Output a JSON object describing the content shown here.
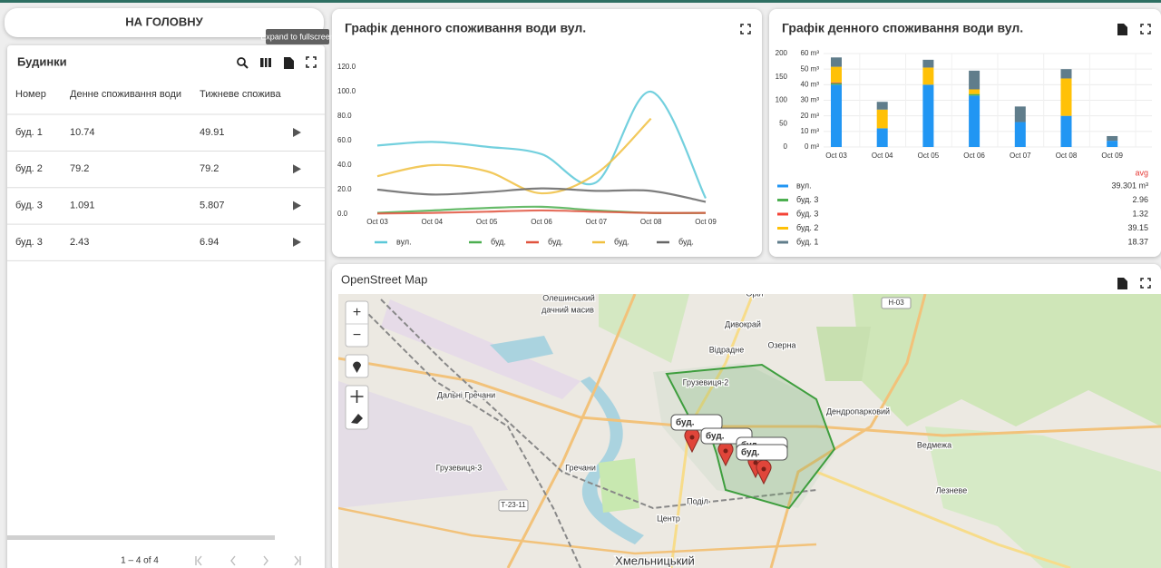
{
  "home_button": "НА ГОЛОВНУ",
  "tooltip": "Expand to fullscreen",
  "table": {
    "title": "Будинки",
    "columns": [
      "Номер",
      "Денне споживання води",
      "Тижневе спожива"
    ],
    "rows": [
      [
        "буд. 1",
        "10.74",
        "49.91"
      ],
      [
        "буд. 2",
        "79.2",
        "79.2"
      ],
      [
        "буд. 3",
        "1.091",
        "5.807"
      ],
      [
        "буд. 3",
        "2.43",
        "6.94"
      ]
    ],
    "pagination": "1 – 4 of 4"
  },
  "chart_data": [
    {
      "type": "line",
      "title": "Графік денного споживання води вул.",
      "categories": [
        "Oct 03",
        "Oct 04",
        "Oct 05",
        "Oct 06",
        "Oct 07",
        "Oct 08",
        "Oct 09"
      ],
      "ylim": [
        0,
        120
      ],
      "yticks": [
        {
          "value": 0,
          "label": "0.0"
        },
        {
          "value": 20,
          "label": "20.0"
        },
        {
          "value": 40,
          "label": "40.0"
        },
        {
          "value": 60,
          "label": "60.0"
        },
        {
          "value": 80,
          "label": "80.0"
        },
        {
          "value": 100,
          "label": "100.0"
        },
        {
          "value": 120,
          "label": "120.0"
        }
      ],
      "grid": false,
      "series": [
        {
          "name": "вул.",
          "color": "#5bc8d8",
          "values": [
            56,
            59,
            55,
            49,
            26,
            100,
            13
          ]
        },
        {
          "name": "буд.",
          "color": "#4caf50",
          "values": [
            1,
            3,
            5,
            6,
            3,
            1,
            1
          ]
        },
        {
          "name": "буд.",
          "color": "#e0533e",
          "values": [
            0.5,
            1,
            2,
            3,
            2,
            1,
            1
          ]
        },
        {
          "name": "буд.",
          "color": "#f0c040",
          "values": [
            31,
            40,
            35,
            17,
            33,
            78,
            null
          ]
        },
        {
          "name": "буд.",
          "color": "#666666",
          "values": [
            20,
            16,
            18,
            21,
            19,
            19,
            10
          ]
        }
      ]
    },
    {
      "type": "bar",
      "title": "Графік денного споживання води вул.",
      "categories": [
        "Oct 03",
        "Oct 04",
        "Oct 05",
        "Oct 06",
        "Oct 07",
        "Oct 08",
        "Oct 09"
      ],
      "stacked": true,
      "ylim": [
        0,
        200
      ],
      "yticks": [
        0,
        50,
        100,
        150,
        200
      ],
      "y2lim": [
        0,
        60
      ],
      "y2ticks": [
        {
          "value": 0,
          "label": "0 m³"
        },
        {
          "value": 10,
          "label": "10 m³"
        },
        {
          "value": 20,
          "label": "20 m³"
        },
        {
          "value": 30,
          "label": "30 m³"
        },
        {
          "value": 40,
          "label": "40 m³"
        },
        {
          "value": 50,
          "label": "50 m³"
        },
        {
          "value": 60,
          "label": "60 m³"
        }
      ],
      "grid": true,
      "legend_header": "avg",
      "series": [
        {
          "name": "вул.",
          "color": "#2196f3",
          "axis": "y2",
          "values": [
            40,
            12,
            40,
            33,
            16,
            20,
            4
          ],
          "avg_label": "39.301 m³"
        },
        {
          "name": "буд. 3",
          "color": "#4caf50",
          "axis": "y2",
          "values": [
            1,
            0,
            0,
            1,
            0,
            0,
            0
          ],
          "avg_label": "2.96"
        },
        {
          "name": "буд. 3",
          "color": "#f44336",
          "axis": "y2",
          "values": [
            0.5,
            0,
            0,
            0,
            0,
            0,
            0
          ],
          "avg_label": "1.32"
        },
        {
          "name": "буд. 2",
          "color": "#ffc107",
          "axis": "y2",
          "values": [
            10,
            12,
            11,
            3,
            0,
            24,
            0
          ],
          "avg_label": "39.15"
        },
        {
          "name": "буд. 1",
          "color": "#607d8b",
          "axis": "y2",
          "values": [
            6,
            5,
            5,
            12,
            10,
            6,
            3
          ],
          "avg_label": "18.37"
        }
      ]
    }
  ],
  "map": {
    "title": "OpenStreet Map",
    "zoom_in": "+",
    "zoom_out": "−",
    "places": [
      "Олешинський",
      "дачний масив",
      "Дивокрай",
      "Відрадне",
      "Озерна",
      "Грузевиця-2",
      "Дальні Гречани",
      "Грузевиця-3",
      "Гречани",
      "Поділ",
      "Центр",
      "Хмельницький",
      "Дендропарковий",
      "Ведмежа",
      "Лезневе",
      "Оріл"
    ],
    "road_signs": [
      "Т-23-11",
      "Н-03"
    ],
    "markers": [
      "буд.",
      "буд.",
      "буд.",
      "буд."
    ]
  }
}
